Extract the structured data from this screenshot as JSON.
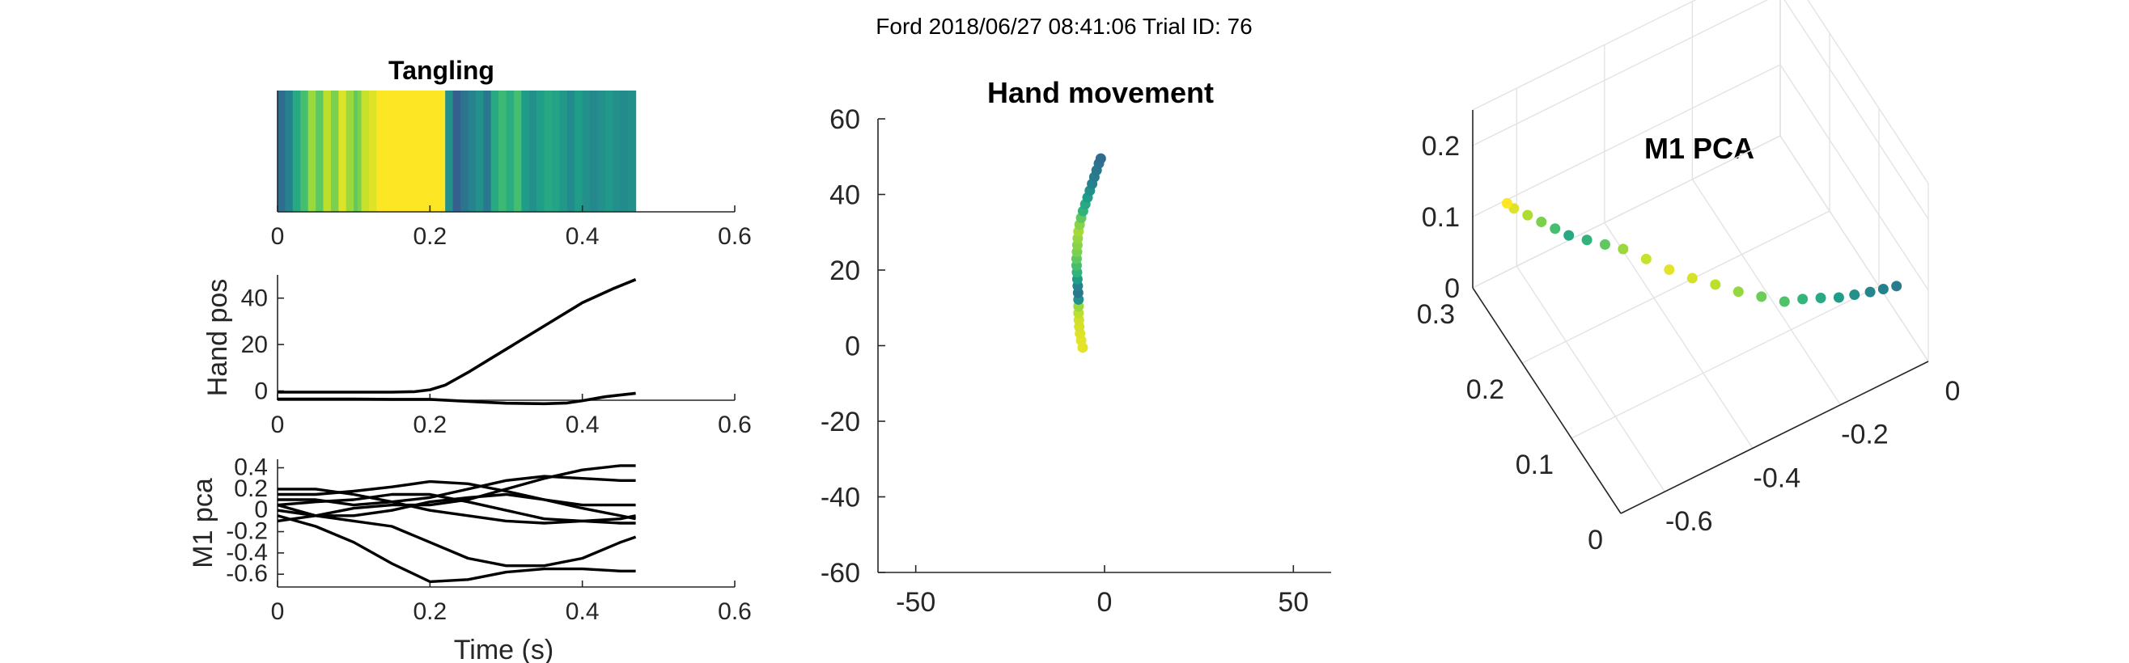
{
  "figure_title": "Ford 2018/06/27 08:41:06 Trial ID: 76",
  "colors": {
    "axis": "#262626",
    "trace": "#000000",
    "grid": "#e3e3e3"
  },
  "chart_data": [
    {
      "id": "tangling",
      "type": "heatmap",
      "title": "Tangling",
      "colormap": "viridis",
      "xlim": [
        0,
        0.6
      ],
      "xticks": [
        "0",
        "0.2",
        "0.4",
        "0.6"
      ],
      "x_extent": [
        0,
        0.47
      ],
      "cells": [
        0.35,
        0.35,
        0.45,
        0.45,
        0.6,
        0.6,
        0.7,
        0.7,
        0.85,
        0.85,
        0.75,
        0.75,
        0.9,
        0.9,
        0.8,
        0.8,
        0.95,
        0.95,
        0.85,
        0.85,
        0.75,
        0.8,
        0.92,
        0.92,
        0.95,
        0.95,
        1,
        1,
        1,
        1,
        1,
        1,
        1,
        1,
        1,
        1,
        1,
        1,
        1,
        1,
        1,
        1,
        1,
        1,
        0.5,
        0.5,
        0.3,
        0.3,
        0.38,
        0.38,
        0.45,
        0.45,
        0.5,
        0.5,
        0.4,
        0.4,
        0.6,
        0.6,
        0.68,
        0.68,
        0.62,
        0.62,
        0.7,
        0.7,
        0.55,
        0.55,
        0.5,
        0.5,
        0.56,
        0.56,
        0.6,
        0.6,
        0.58,
        0.58,
        0.53,
        0.53,
        0.48,
        0.48,
        0.55,
        0.55,
        0.5,
        0.5,
        0.47,
        0.47,
        0.5,
        0.5,
        0.53,
        0.53,
        0.5,
        0.5,
        0.48,
        0.48,
        0.5,
        0.5
      ]
    },
    {
      "id": "hand_pos",
      "type": "line",
      "title": "",
      "xlabel": "",
      "ylabel": "Hand pos",
      "xlim": [
        0,
        0.6
      ],
      "ylim": [
        -4,
        50
      ],
      "xticks": [
        "0",
        "0.2",
        "0.4",
        "0.6"
      ],
      "yticks": [
        0,
        20,
        40
      ],
      "series": [
        {
          "x": [
            0,
            0.05,
            0.1,
            0.15,
            0.18,
            0.2,
            0.22,
            0.25,
            0.28,
            0.32,
            0.36,
            0.4,
            0.44,
            0.47
          ],
          "values": [
            -0.5,
            -0.5,
            -0.5,
            -0.5,
            -0.3,
            0.5,
            2.5,
            8,
            14,
            22,
            30,
            38,
            44,
            48
          ]
        },
        {
          "x": [
            0,
            0.05,
            0.1,
            0.15,
            0.2,
            0.25,
            0.3,
            0.35,
            0.38,
            0.4,
            0.43,
            0.47
          ],
          "values": [
            -3.5,
            -3.5,
            -3.5,
            -3.6,
            -3.6,
            -4.5,
            -5.3,
            -5.5,
            -5.2,
            -4.2,
            -2.5,
            -1
          ]
        }
      ]
    },
    {
      "id": "m1_pca",
      "type": "line",
      "title": "",
      "xlabel": "Time (s)",
      "ylabel": "M1 pca",
      "xlim": [
        0,
        0.6
      ],
      "ylim": [
        -0.72,
        0.48
      ],
      "xticks": [
        "0",
        "0.2",
        "0.4",
        "0.6"
      ],
      "yticks": [
        "0.4",
        "0.2",
        "0",
        "-0.2",
        "-0.4",
        "-0.6"
      ],
      "x": [
        0,
        0.05,
        0.1,
        0.15,
        0.2,
        0.25,
        0.3,
        0.35,
        0.4,
        0.45,
        0.47
      ],
      "series": [
        {
          "values": [
            -0.05,
            -0.15,
            -0.3,
            -0.5,
            -0.67,
            -0.65,
            -0.58,
            -0.55,
            -0.55,
            -0.57,
            -0.57
          ]
        },
        {
          "values": [
            0.05,
            -0.05,
            -0.1,
            -0.15,
            -0.3,
            -0.45,
            -0.52,
            -0.52,
            -0.45,
            -0.3,
            -0.25
          ]
        },
        {
          "values": [
            0.15,
            0.15,
            0.18,
            0.22,
            0.27,
            0.25,
            0.18,
            0.1,
            0.02,
            -0.05,
            -0.08
          ]
        },
        {
          "values": [
            0.1,
            0.1,
            0.05,
            0.08,
            0.12,
            0.2,
            0.28,
            0.32,
            0.3,
            0.28,
            0.28
          ]
        },
        {
          "values": [
            -0.1,
            -0.05,
            0.02,
            0.05,
            0.05,
            0.1,
            0.2,
            0.3,
            0.38,
            0.42,
            0.42
          ]
        },
        {
          "values": [
            0,
            -0.05,
            -0.05,
            0,
            0.08,
            0.12,
            0.15,
            0.1,
            0.05,
            0.05,
            0.05
          ]
        },
        {
          "values": [
            0.05,
            0.08,
            0.1,
            0.15,
            0.15,
            0.08,
            0,
            -0.08,
            -0.1,
            -0.08,
            -0.05
          ]
        },
        {
          "values": [
            0.2,
            0.2,
            0.15,
            0.08,
            0,
            -0.05,
            -0.1,
            -0.12,
            -0.1,
            -0.12,
            -0.12
          ]
        }
      ]
    },
    {
      "id": "hand_movement",
      "type": "scatter",
      "title": "Hand movement",
      "xlim": [
        -60,
        60
      ],
      "ylim": [
        -60,
        60
      ],
      "xticks": [
        -50,
        0,
        50
      ],
      "yticks": [
        60,
        40,
        20,
        0,
        -20,
        -40,
        -60
      ],
      "colormap": "viridis",
      "points": [
        [
          -5.8,
          -0.5,
          0.96
        ],
        [
          -6.2,
          1.4,
          0.96
        ],
        [
          -6.5,
          3.2,
          0.95
        ],
        [
          -6.7,
          5,
          0.94
        ],
        [
          -6.8,
          6.8,
          0.93
        ],
        [
          -6.9,
          8.6,
          0.9
        ],
        [
          -6.9,
          10.4,
          0.85
        ],
        [
          -6.9,
          12.2,
          0.5
        ],
        [
          -7,
          14,
          0.4
        ],
        [
          -7.1,
          15.8,
          0.45
        ],
        [
          -7.2,
          17.6,
          0.55
        ],
        [
          -7.3,
          19.4,
          0.65
        ],
        [
          -7.4,
          21.2,
          0.7
        ],
        [
          -7.4,
          23,
          0.75
        ],
        [
          -7.3,
          24.8,
          0.8
        ],
        [
          -7.2,
          26.6,
          0.82
        ],
        [
          -7.1,
          28.4,
          0.84
        ],
        [
          -6.9,
          30.2,
          0.86
        ],
        [
          -6.6,
          32,
          0.82
        ],
        [
          -6.2,
          33.8,
          0.75
        ],
        [
          -5.7,
          35.6,
          0.65
        ],
        [
          -5.1,
          37.4,
          0.6
        ],
        [
          -4.5,
          39.2,
          0.55
        ],
        [
          -3.9,
          41,
          0.5
        ],
        [
          -3.3,
          42.8,
          0.45
        ],
        [
          -2.7,
          44.6,
          0.42
        ],
        [
          -2.1,
          46.4,
          0.4
        ],
        [
          -1.5,
          48.2,
          0.38
        ],
        [
          -1,
          49.5,
          0.35
        ]
      ]
    },
    {
      "id": "m1_pca_3d",
      "type": "scatter",
      "title": "M1 PCA",
      "xticks": [
        "0",
        "-0.2",
        "-0.4",
        "-0.6"
      ],
      "yticks": [
        "0.3",
        "0.2",
        "0.1",
        "0"
      ],
      "zticks": [
        "0.2",
        "0.1",
        "0"
      ],
      "colormap": "viridis",
      "points": [
        [
          -0.05,
          0.02,
          0.1,
          0.42
        ],
        [
          -0.08,
          0.02,
          0.105,
          0.44
        ],
        [
          -0.11,
          0.02,
          0.11,
          0.46
        ],
        [
          -0.14,
          0.025,
          0.11,
          0.5
        ],
        [
          -0.17,
          0.03,
          0.11,
          0.55
        ],
        [
          -0.2,
          0.04,
          0.108,
          0.6
        ],
        [
          -0.23,
          0.05,
          0.105,
          0.66
        ],
        [
          -0.26,
          0.06,
          0.1,
          0.72
        ],
        [
          -0.29,
          0.08,
          0.095,
          0.78
        ],
        [
          -0.32,
          0.1,
          0.09,
          0.84
        ],
        [
          -0.35,
          0.12,
          0.088,
          0.9
        ],
        [
          -0.38,
          0.14,
          0.085,
          0.94
        ],
        [
          -0.41,
          0.16,
          0.085,
          0.96
        ],
        [
          -0.44,
          0.18,
          0.088,
          0.92
        ],
        [
          -0.47,
          0.2,
          0.09,
          0.85
        ],
        [
          -0.5,
          0.21,
          0.095,
          0.75
        ],
        [
          -0.53,
          0.22,
          0.1,
          0.65
        ],
        [
          -0.56,
          0.23,
          0.105,
          0.6
        ],
        [
          -0.58,
          0.24,
          0.11,
          0.7
        ],
        [
          -0.6,
          0.25,
          0.115,
          0.8
        ],
        [
          -0.62,
          0.26,
          0.12,
          0.88
        ],
        [
          -0.64,
          0.27,
          0.125,
          0.95
        ],
        [
          -0.65,
          0.275,
          0.13,
          1
        ]
      ]
    }
  ]
}
